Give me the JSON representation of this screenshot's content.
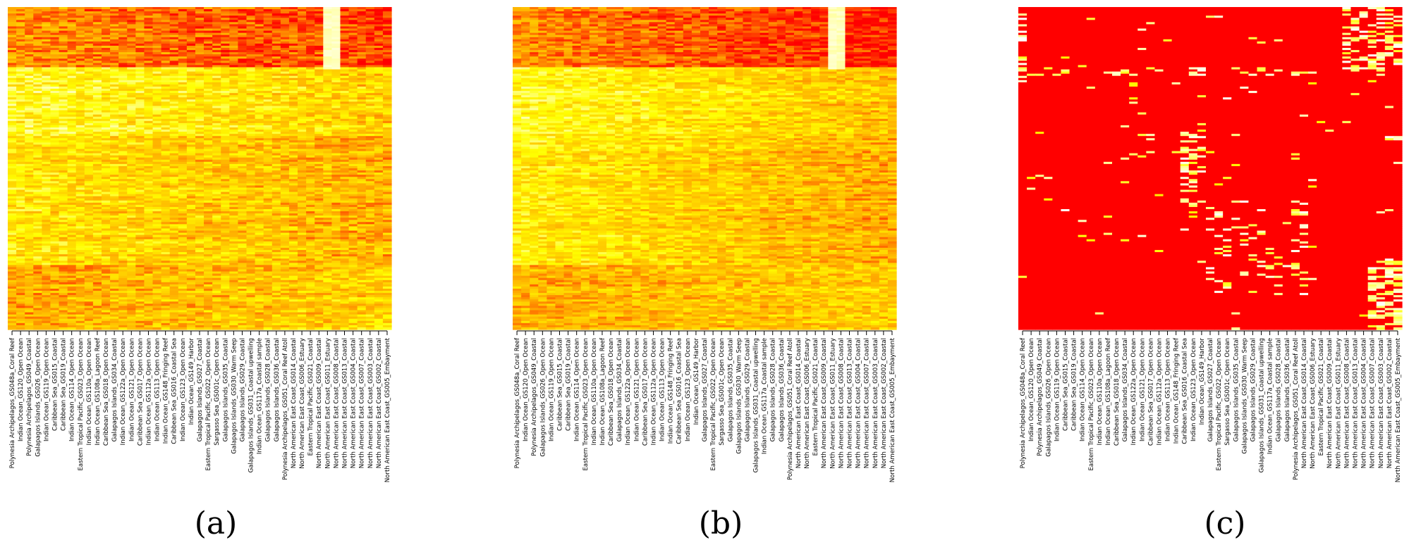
{
  "figure": {
    "panels": [
      {
        "id": "a",
        "caption": "(a)"
      },
      {
        "id": "b",
        "caption": "(b)"
      },
      {
        "id": "c",
        "caption": "(c)"
      }
    ]
  },
  "chart_data": [
    {
      "type": "heatmap",
      "panel": "(a)",
      "color_scale": [
        "#ff0000",
        "#ffa500",
        "#ffff00",
        "#ffffff"
      ],
      "grid": false,
      "columns": [
        "Polynesia Archipelagos_GS048a_Coral Reef",
        "Indian Ocean_GS120_Open Ocean",
        "Polynesia Archipelagos_GS049_Coastal",
        "Galapagos Islands_GS026_Open Ocean",
        "Indian Ocean_GS119_Open Ocean",
        "Caribbean Sea_GS015_Coastal",
        "Caribbean Sea_GS019_Coastal",
        "Indian Ocean_GS114_Open Ocean",
        "Eastern Tropical Pacific_GS023_Open Ocean",
        "Indian Ocean_GS110a_Open Ocean",
        "Indian Ocean_GS108a_Lagoon Reef",
        "Caribbean Sea_GS018_Open Ocean",
        "Galapagos Islands_GS034_Coastal",
        "Indian Ocean_GS122a_Open Ocean",
        "Indian Ocean_GS121_Open Ocean",
        "Caribbean Sea_GS017_Open Ocean",
        "Indian Ocean_GS112a_Open Ocean",
        "Indian Ocean_GS113_Open Ocean",
        "Indian Ocean_GS148_Fringing Reef",
        "Caribbean Sea_GS016_Coastal Sea",
        "Indian Ocean_GS123_Open Ocean",
        "Indian Ocean_GS149_Harbor",
        "Galapagos Islands_GS027_Coastal",
        "Eastern Tropical Pacific_GS022_Open Ocean",
        "Sargasso Sea_GS001c_Open Ocean",
        "Galapagos Islands_GS035_Coastal",
        "Galapagos Islands_GS030_Warm Seep",
        "Galapagos Islands_GS029_Coastal",
        "Galapagos Islands_GS031_Coastal upwelling",
        "Indian Ocean_GS117a_Coastal sample",
        "Galapagos Islands_GS028_Coastal",
        "Galapagos Islands_GS036_Coastal",
        "Polynesia Archipelagos_GS051_Coral Reef Atoll",
        "North American East Coast_GS014_Coastal",
        "North American East Coast_GS006_Estuary",
        "Eastern Tropical Pacific_GS021_Coastal",
        "North American East Coast_GS009_Coastal",
        "North American East Coast_GS011_Estuary",
        "North American East Coast_GS008_Coastal",
        "North American East Coast_GS013_Coastal",
        "North American East Coast_GS004_Coastal",
        "North American East Coast_GS007_Coastal",
        "North American East Coast_GS003_Coastal",
        "North American East Coast_GS002_Coastal",
        "North American East Coast_GS005_Embayment"
      ],
      "row_bands": [
        {
          "from": 0.0,
          "to": 0.19,
          "level": 0.22
        },
        {
          "from": 0.19,
          "to": 0.4,
          "level": 0.62
        },
        {
          "from": 0.4,
          "to": 0.8,
          "level": 0.5
        },
        {
          "from": 0.8,
          "to": 1.0,
          "level": 0.28
        }
      ],
      "column_trend": [
        0.08,
        -0.12
      ],
      "hot_columns": [
        {
          "from": 37,
          "to": 38,
          "rows": [
            0.0,
            0.19
          ],
          "level": 0.95
        }
      ],
      "noise": 0.18
    },
    {
      "type": "heatmap",
      "panel": "(b)",
      "color_scale": [
        "#ff0000",
        "#ffa500",
        "#ffff00",
        "#ffffff"
      ],
      "grid": false,
      "columns": [
        "Polynesia Archipelagos_GS048a_Coral Reef",
        "Indian Ocean_GS120_Open Ocean",
        "Polynesia Archipelagos_GS049_Coastal",
        "Galapagos Islands_GS026_Open Ocean",
        "Indian Ocean_GS119_Open Ocean",
        "Caribbean Sea_GS015_Coastal",
        "Caribbean Sea_GS019_Coastal",
        "Indian Ocean_GS114_Open Ocean",
        "Eastern Tropical Pacific_GS023_Open Ocean",
        "Indian Ocean_GS110a_Open Ocean",
        "Indian Ocean_GS108a_Lagoon Reef",
        "Caribbean Sea_GS018_Open Ocean",
        "Galapagos Islands_GS034_Coastal",
        "Indian Ocean_GS122a_Open Ocean",
        "Indian Ocean_GS121_Open Ocean",
        "Caribbean Sea_GS017_Open Ocean",
        "Indian Ocean_GS112a_Open Ocean",
        "Indian Ocean_GS113_Open Ocean",
        "Indian Ocean_GS148_Fringing Reef",
        "Caribbean Sea_GS016_Coastal Sea",
        "Indian Ocean_GS123_Open Ocean",
        "Indian Ocean_GS149_Harbor",
        "Galapagos Islands_GS027_Coastal",
        "Eastern Tropical Pacific_GS022_Open Ocean",
        "Sargasso Sea_GS001c_Open Ocean",
        "Galapagos Islands_GS035_Coastal",
        "Galapagos Islands_GS030_Warm Seep",
        "Galapagos Islands_GS029_Coastal",
        "Galapagos Islands_GS031_Coastal upwelling",
        "Indian Ocean_GS117a_Coastal sample",
        "Galapagos Islands_GS028_Coastal",
        "Galapagos Islands_GS036_Coastal",
        "Polynesia Archipelagos_GS051_Coral Reef Atoll",
        "North American East Coast_GS014_Coastal",
        "North American East Coast_GS006_Estuary",
        "Eastern Tropical Pacific_GS021_Coastal",
        "North American East Coast_GS009_Coastal",
        "North American East Coast_GS011_Estuary",
        "North American East Coast_GS008_Coastal",
        "North American East Coast_GS013_Coastal",
        "North American East Coast_GS004_Coastal",
        "North American East Coast_GS007_Coastal",
        "North American East Coast_GS003_Coastal",
        "North American East Coast_GS002_Coastal",
        "North American East Coast_GS005_Embayment"
      ],
      "row_bands": [
        {
          "from": 0.0,
          "to": 0.19,
          "level": 0.2
        },
        {
          "from": 0.19,
          "to": 0.4,
          "level": 0.6
        },
        {
          "from": 0.4,
          "to": 0.8,
          "level": 0.52
        },
        {
          "from": 0.8,
          "to": 1.0,
          "level": 0.3
        }
      ],
      "column_trend": [
        0.1,
        -0.15
      ],
      "hot_columns": [
        {
          "from": 37,
          "to": 38,
          "rows": [
            0.0,
            0.19
          ],
          "level": 0.95
        }
      ],
      "noise": 0.16
    },
    {
      "type": "heatmap",
      "panel": "(c)",
      "color_scale": [
        "#ff0000",
        "#ffa500",
        "#ffff00",
        "#ffffff"
      ],
      "grid": false,
      "columns": [
        "Polynesia Archipelagos_GS048a_Coral Reef",
        "Indian Ocean_GS120_Open Ocean",
        "Polynesia Archipelagos_GS049_Coastal",
        "Galapagos Islands_GS026_Open Ocean",
        "Indian Ocean_GS119_Open Ocean",
        "Caribbean Sea_GS015_Coastal",
        "Caribbean Sea_GS019_Coastal",
        "Indian Ocean_GS114_Open Ocean",
        "Eastern Tropical Pacific_GS023_Open Ocean",
        "Indian Ocean_GS110a_Open Ocean",
        "Indian Ocean_GS108a_Lagoon Reef",
        "Caribbean Sea_GS018_Open Ocean",
        "Galapagos Islands_GS034_Coastal",
        "Indian Ocean_GS122a_Open Ocean",
        "Indian Ocean_GS121_Open Ocean",
        "Caribbean Sea_GS017_Open Ocean",
        "Indian Ocean_GS112a_Open Ocean",
        "Indian Ocean_GS113_Open Ocean",
        "Indian Ocean_GS148_Fringing Reef",
        "Caribbean Sea_GS016_Coastal Sea",
        "Indian Ocean_GS123_Open Ocean",
        "Indian Ocean_GS149_Harbor",
        "Galapagos Islands_GS027_Coastal",
        "Eastern Tropical Pacific_GS022_Open Ocean",
        "Sargasso Sea_GS001c_Open Ocean",
        "Galapagos Islands_GS035_Coastal",
        "Galapagos Islands_GS030_Warm Seep",
        "Galapagos Islands_GS029_Coastal",
        "Galapagos Islands_GS031_Coastal upwelling",
        "Indian Ocean_GS117a_Coastal sample",
        "Galapagos Islands_GS028_Coastal",
        "Galapagos Islands_GS036_Coastal",
        "Polynesia Archipelagos_GS051_Coral Reef Atoll",
        "North American East Coast_GS014_Coastal",
        "North American East Coast_GS006_Estuary",
        "Eastern Tropical Pacific_GS021_Coastal",
        "North American East Coast_GS009_Coastal",
        "North American East Coast_GS011_Estuary",
        "North American East Coast_GS008_Coastal",
        "North American East Coast_GS013_Coastal",
        "North American East Coast_GS004_Coastal",
        "North American East Coast_GS007_Coastal",
        "North American East Coast_GS003_Coastal",
        "North American East Coast_GS002_Coastal",
        "North American East Coast_GS005_Embayment"
      ],
      "background_level": 0.0,
      "sparse": true,
      "speckle_regions": [
        {
          "cols": [
            0,
            0
          ],
          "rows": [
            0.0,
            0.28
          ],
          "density": 0.35
        },
        {
          "cols": [
            0,
            34
          ],
          "rows": [
            0.19,
            0.21
          ],
          "density": 0.25
        },
        {
          "cols": [
            19,
            21
          ],
          "rows": [
            0.38,
            0.62
          ],
          "density": 0.45
        },
        {
          "cols": [
            22,
            33
          ],
          "rows": [
            0.6,
            0.9
          ],
          "density": 0.12
        },
        {
          "cols": [
            38,
            44
          ],
          "rows": [
            0.0,
            0.2
          ],
          "density": 0.35
        },
        {
          "cols": [
            41,
            44
          ],
          "rows": [
            0.78,
            1.0
          ],
          "density": 0.45
        }
      ],
      "noise": 0.015
    }
  ]
}
